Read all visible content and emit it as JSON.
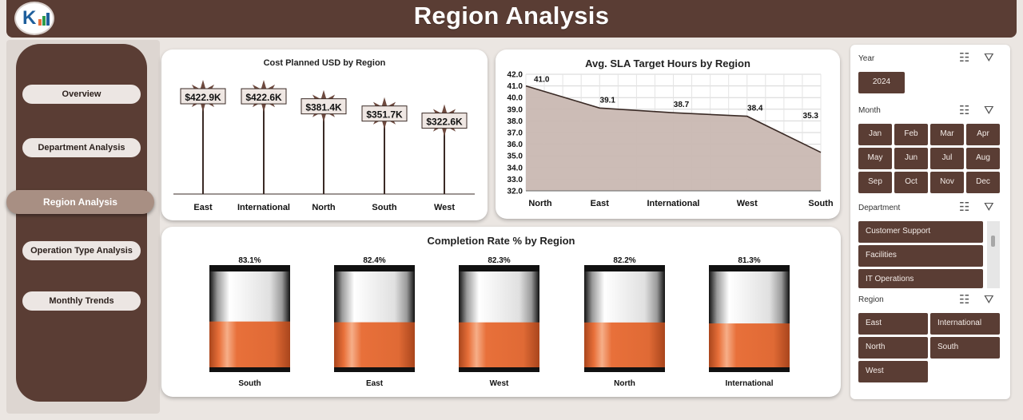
{
  "header": {
    "title": "Region Analysis"
  },
  "sidebar": {
    "items": [
      {
        "label": "Overview",
        "active": false
      },
      {
        "label": "Department Analysis",
        "active": false
      },
      {
        "label": "Region Analysis",
        "active": true
      },
      {
        "label": "Operation Type Analysis",
        "active": false
      },
      {
        "label": "Monthly Trends",
        "active": false
      }
    ]
  },
  "colors": {
    "brand": "#5a3d34",
    "accent": "#e8703a",
    "area_fill": "#c9b8b2"
  },
  "chart_data": [
    {
      "type": "bar",
      "title": "Cost Planned USD by Region",
      "categories": [
        "East",
        "International",
        "North",
        "South",
        "West"
      ],
      "values": [
        422.9,
        422.6,
        381.4,
        351.7,
        322.6
      ],
      "data_labels": [
        "$422.9K",
        "$422.6K",
        "$381.4K",
        "$351.7K",
        "$322.6K"
      ],
      "ylim": [
        0,
        422.9
      ]
    },
    {
      "type": "area",
      "title": "Avg. SLA Target Hours by Region",
      "categories": [
        "North",
        "East",
        "International",
        "West",
        "South"
      ],
      "values": [
        41.0,
        39.1,
        38.7,
        38.4,
        35.3
      ],
      "data_labels": [
        "41.0",
        "39.1",
        "38.7",
        "38.4",
        "35.3"
      ],
      "y_ticks": [
        "42.0",
        "41.0",
        "40.0",
        "39.0",
        "38.0",
        "37.0",
        "36.0",
        "35.0",
        "34.0",
        "33.0",
        "32.0"
      ],
      "ylim": [
        32,
        42
      ],
      "grid": true
    },
    {
      "type": "bar",
      "title": "Completion Rate % by Region",
      "categories": [
        "South",
        "East",
        "West",
        "North",
        "International"
      ],
      "values": [
        83.1,
        82.4,
        82.3,
        82.2,
        81.3
      ],
      "data_labels": [
        "83.1%",
        "82.4%",
        "82.3%",
        "82.2%",
        "81.3%"
      ]
    }
  ],
  "slicers": {
    "year": {
      "label": "Year",
      "items": [
        "2024"
      ]
    },
    "month": {
      "label": "Month",
      "items": [
        "Jan",
        "Feb",
        "Mar",
        "Apr",
        "May",
        "Jun",
        "Jul",
        "Aug",
        "Sep",
        "Oct",
        "Nov",
        "Dec"
      ]
    },
    "department": {
      "label": "Department",
      "items": [
        "Customer Support",
        "Facilities",
        "IT Operations"
      ]
    },
    "region": {
      "label": "Region",
      "items": [
        "East",
        "International",
        "North",
        "South",
        "West"
      ]
    }
  }
}
